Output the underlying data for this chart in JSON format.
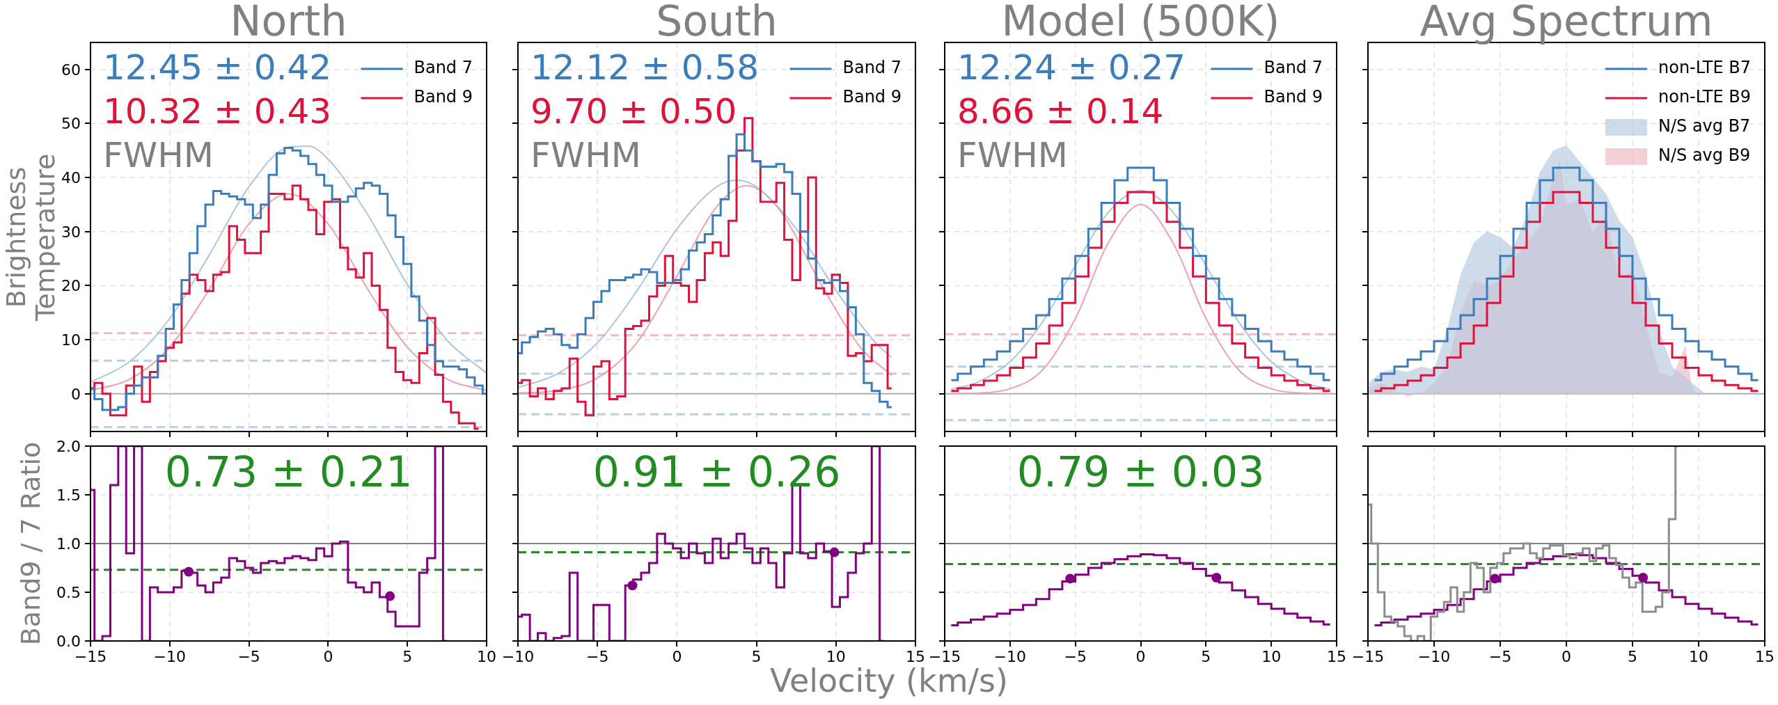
{
  "chart_data": [
    {
      "type": "step",
      "title": "North",
      "ylabel": "Brightness Temperature",
      "xlim": [
        -15,
        10
      ],
      "xticks": [
        -15,
        -10,
        -5,
        0,
        5,
        10
      ],
      "ylim": [
        -7,
        65
      ],
      "yticks": [
        0,
        10,
        20,
        30,
        40,
        50,
        60
      ],
      "tick_labels": "y",
      "grid": true,
      "legend": "top right",
      "annotations": [
        "12.45 ± 0.42",
        "10.32 ± 0.43",
        "FWHM"
      ],
      "ref_lines": [
        {
          "axis": "y",
          "value": 0,
          "color": "#b0b0b0"
        },
        {
          "axis": "y",
          "value": 11.2,
          "color": "#f4b8c4",
          "line_style": "dashed"
        },
        {
          "axis": "y",
          "value": 6.1,
          "color": "#b8cfe6",
          "line_style": "dashed"
        },
        {
          "axis": "y",
          "value": -6.2,
          "color": "#b8cfe6",
          "line_style": "dashed"
        }
      ],
      "series": [
        {
          "name": "Band 7",
          "color": "#3b7dba",
          "x": [
            -15,
            -14.5,
            -14,
            -13.5,
            -13,
            -12.5,
            -12,
            -11.5,
            -11,
            -10.5,
            -10,
            -9.5,
            -9,
            -8.5,
            -8,
            -7.5,
            -7,
            -6.5,
            -6,
            -5.5,
            -5,
            -4.5,
            -4,
            -3.5,
            -3,
            -2.5,
            -2,
            -1.5,
            -1,
            -0.5,
            0,
            0.5,
            1,
            1.5,
            2,
            2.5,
            3,
            3.5,
            4,
            4.5,
            5,
            5.5,
            6,
            6.5,
            7,
            7.5,
            8,
            8.5,
            9,
            9.5,
            10
          ],
          "values": [
            1,
            -1,
            -3,
            -3,
            -2.5,
            0,
            1.5,
            3,
            3,
            7,
            12,
            16.5,
            21,
            26,
            31,
            35,
            37.5,
            37,
            36.5,
            36,
            35,
            32.5,
            35,
            40.5,
            44.5,
            45.5,
            45,
            44,
            42.5,
            40.5,
            38.5,
            35.5,
            35.5,
            36.5,
            38,
            39,
            38.5,
            37,
            33,
            29,
            24,
            18,
            13.5,
            9,
            6,
            5,
            5,
            4.5,
            3,
            1.5,
            0
          ]
        },
        {
          "name": "Band 9",
          "color": "#dc143c",
          "x": [
            -15,
            -14.5,
            -14,
            -13.5,
            -13,
            -12.5,
            -12,
            -11.5,
            -11,
            -10.5,
            -10,
            -9.5,
            -9,
            -8.5,
            -8,
            -7.5,
            -7,
            -6.5,
            -6,
            -5.5,
            -5,
            -4.5,
            -4,
            -3.5,
            -3,
            -2.5,
            -2,
            -1.5,
            -1,
            -0.5,
            0,
            0.5,
            1,
            1.5,
            2,
            2.5,
            3,
            3.5,
            4,
            4.5,
            5,
            5.5,
            6,
            6.5,
            7,
            7.5,
            8,
            8.5,
            9,
            9.5
          ],
          "values": [
            1,
            2,
            0,
            -4,
            -4,
            1.5,
            5,
            -1.5,
            4,
            6,
            8.5,
            9.5,
            18.5,
            22,
            21,
            19,
            22,
            22.5,
            31,
            28.5,
            26,
            26,
            30,
            37,
            37,
            36,
            38.5,
            36,
            34,
            29.5,
            35.5,
            36,
            27,
            23,
            21.5,
            26,
            20,
            15.5,
            8.5,
            4,
            2.5,
            2,
            7.5,
            14,
            3.5,
            -1.5,
            -3.5,
            -5.5,
            -5.5,
            -6.5
          ]
        },
        {
          "type": "line",
          "color": "#a9c5df",
          "x": [
            -15,
            -12.5,
            -10,
            -7.5,
            -5,
            -2.5,
            -1.25,
            0,
            2.5,
            5,
            7.5,
            10
          ],
          "values": [
            2.1,
            6,
            13.9,
            25.7,
            38.3,
            45.6,
            45.8,
            43.4,
            33.1,
            20.2,
            9.9,
            3.8
          ]
        },
        {
          "type": "line",
          "color": "#eda1b0",
          "x": [
            -15,
            -12.5,
            -10,
            -7.5,
            -5,
            -2.5,
            0,
            2.5,
            5,
            7.5,
            10
          ],
          "values": [
            0.6,
            2.7,
            8.6,
            19.3,
            31.4,
            37,
            31.4,
            19.3,
            8.6,
            2.7,
            0.6
          ]
        }
      ]
    },
    {
      "type": "step",
      "title": "South",
      "xlim": [
        -10,
        15
      ],
      "xticks": [
        -10,
        -5,
        0,
        5,
        10,
        15
      ],
      "ylim": [
        -7,
        65
      ],
      "yticks": [
        0,
        10,
        20,
        30,
        40,
        50,
        60
      ],
      "tick_labels": false,
      "grid": true,
      "legend": "top right",
      "annotations": [
        "12.12 ± 0.58",
        "9.70 ± 0.50",
        "FWHM"
      ],
      "ref_lines": [
        {
          "axis": "y",
          "value": 0,
          "color": "#b0b0b0"
        },
        {
          "axis": "y",
          "value": 10.8,
          "color": "#f4b8c4",
          "line_style": "dashed"
        },
        {
          "axis": "y",
          "value": 3.7,
          "color": "#b8cfe6",
          "line_style": "dashed"
        },
        {
          "axis": "y",
          "value": -3.8,
          "color": "#b8cfe6",
          "line_style": "dashed"
        }
      ],
      "series": [
        {
          "name": "Band 7",
          "color": "#3b7dba",
          "x": [
            -10,
            -9.5,
            -9,
            -8.5,
            -8,
            -7.5,
            -7,
            -6.5,
            -6,
            -5.5,
            -5,
            -4.5,
            -4,
            -3.5,
            -3,
            -2.5,
            -2,
            -1.5,
            -1,
            -0.5,
            0,
            0.5,
            1,
            1.5,
            2,
            2.5,
            3,
            3.5,
            4,
            4.5,
            5,
            5.5,
            6,
            6.5,
            7,
            7.5,
            8,
            8.5,
            9,
            9.5,
            10,
            10.5,
            11,
            11.5,
            12,
            12.5,
            13,
            13.5
          ],
          "values": [
            7.5,
            9.5,
            10.5,
            11.5,
            12,
            11,
            9,
            8.5,
            11,
            14,
            17,
            19,
            21,
            21,
            21.5,
            22,
            23,
            22.5,
            20.5,
            20.5,
            21,
            23,
            26.5,
            28,
            29.5,
            33,
            36,
            44,
            48,
            45,
            43,
            42,
            42,
            42.5,
            41,
            37,
            30,
            25,
            21,
            20.5,
            21,
            19,
            16,
            11,
            2,
            0.5,
            -1.5,
            -2.5
          ]
        },
        {
          "name": "Band 9",
          "color": "#dc143c",
          "x": [
            -10,
            -9.5,
            -9,
            -8.5,
            -8,
            -7.5,
            -7,
            -6.5,
            -6,
            -5.5,
            -5,
            -4.5,
            -4,
            -3.5,
            -3,
            -2.5,
            -2,
            -1.5,
            -1,
            -0.5,
            0,
            0.5,
            1,
            1.5,
            2,
            2.5,
            3,
            3.5,
            4,
            4.5,
            5,
            5.5,
            6,
            6.5,
            7,
            7.5,
            8,
            8.5,
            9,
            9.5,
            10,
            10.5,
            11,
            11.5,
            12,
            12.5,
            13,
            13.5
          ],
          "values": [
            2,
            2.5,
            -0.5,
            1,
            -1,
            0.5,
            1,
            6.5,
            -1.5,
            -4,
            5,
            6,
            -1,
            -0.5,
            12,
            12.5,
            13.5,
            18,
            20,
            25.5,
            20.5,
            20,
            17,
            21,
            26,
            28,
            25.5,
            32,
            45,
            51,
            43,
            35.5,
            35.5,
            39,
            28.5,
            21,
            30,
            40,
            19.5,
            18.5,
            22,
            20.5,
            7,
            7.5,
            6,
            9,
            9,
            1
          ]
        },
        {
          "type": "line",
          "color": "#a9c5df",
          "x": [
            -10,
            -7.5,
            -5,
            -2.5,
            0,
            2.5,
            3.75,
            5,
            7.5,
            10,
            12.5,
            13.5
          ],
          "values": [
            1.1,
            3.7,
            9.4,
            19.1,
            30.5,
            38.3,
            39.5,
            38.3,
            30.5,
            19.1,
            9.4,
            6.7
          ]
        },
        {
          "type": "line",
          "color": "#eda1b0",
          "x": [
            -10,
            -7.5,
            -5,
            -2.5,
            0,
            2.5,
            4.4,
            6.5,
            9,
            11.5,
            13.5
          ],
          "values": [
            0.1,
            0.6,
            2.9,
            9.5,
            21.8,
            34.6,
            38.5,
            33.8,
            20.6,
            8.7,
            3.4
          ]
        }
      ]
    },
    {
      "type": "step",
      "title": "Model (500K)",
      "xlim": [
        -15,
        15
      ],
      "xticks": [
        -15,
        -10,
        -5,
        0,
        5,
        10,
        15
      ],
      "ylim": [
        -7,
        65
      ],
      "yticks": [
        0,
        10,
        20,
        30,
        40,
        50,
        60
      ],
      "tick_labels": false,
      "grid": true,
      "legend": "top right",
      "annotations": [
        "12.24 ± 0.27",
        "8.66 ± 0.14",
        "FWHM"
      ],
      "ref_lines": [
        {
          "axis": "y",
          "value": 0,
          "color": "#b0b0b0"
        },
        {
          "axis": "y",
          "value": 11,
          "color": "#f4b8c4",
          "line_style": "dashed"
        },
        {
          "axis": "y",
          "value": 5,
          "color": "#b8cfe6",
          "line_style": "dashed"
        },
        {
          "axis": "y",
          "value": -4.9,
          "color": "#b8cfe6",
          "line_style": "dashed"
        }
      ],
      "series": [
        {
          "name": "Band 7",
          "color": "#3b7dba",
          "x": [
            -14.5,
            -13.5,
            -12.5,
            -11.5,
            -10.5,
            -9.5,
            -8.5,
            -7.5,
            -6.5,
            -5.5,
            -4.5,
            -3.5,
            -2.5,
            -1.5,
            -0.5,
            0.5,
            1.5,
            2.5,
            3.5,
            4.5,
            5.5,
            6.5,
            7.5,
            8.5,
            9.5,
            10.5,
            11.5,
            12.5,
            13.5,
            14.5
          ],
          "values": [
            2.5,
            3.7,
            5,
            6.3,
            7.8,
            9.7,
            12,
            14.5,
            17.5,
            21.3,
            25.5,
            30.5,
            35.3,
            39.5,
            41.8,
            41.8,
            39.5,
            35.3,
            30.5,
            25.5,
            21.3,
            17.5,
            14.5,
            12,
            9.7,
            7.8,
            6.3,
            5,
            3.7,
            2.5
          ]
        },
        {
          "name": "Band 9",
          "color": "#dc143c",
          "x": [
            -14.5,
            -13.5,
            -12.5,
            -11.5,
            -10.5,
            -9.5,
            -8.5,
            -7.5,
            -6.5,
            -5.5,
            -4.5,
            -3.5,
            -2.5,
            -1.5,
            -0.5,
            0.5,
            1.5,
            2.5,
            3.5,
            4.5,
            5.5,
            6.5,
            7.5,
            8.5,
            9.5,
            10.5,
            11.5,
            12.5,
            13.5,
            14.5
          ],
          "values": [
            0.5,
            1,
            1.6,
            2.4,
            3.4,
            4.8,
            6.7,
            9.3,
            12.6,
            16.8,
            21.7,
            27,
            31.8,
            35.3,
            37.3,
            37.3,
            35.3,
            31.8,
            27,
            21.7,
            16.8,
            12.6,
            9.3,
            6.7,
            4.8,
            3.4,
            2.4,
            1.6,
            1,
            0.5
          ]
        },
        {
          "type": "line",
          "color": "#a9c5df",
          "x": [
            -14.5,
            -12.5,
            -10,
            -7.5,
            -5,
            -2.5,
            0,
            2.5,
            5,
            7.5,
            10,
            12.5,
            14.5
          ],
          "values": [
            0.8,
            2.1,
            5.9,
            13.3,
            23.7,
            33.5,
            37.6,
            33.5,
            23.7,
            13.3,
            5.9,
            2.1,
            0.8
          ]
        },
        {
          "type": "line",
          "color": "#eda1b0",
          "x": [
            -14.5,
            -12.5,
            -10,
            -7.5,
            -5,
            -2.5,
            0,
            2.5,
            5,
            7.5,
            10,
            12.5,
            14.5
          ],
          "values": [
            0,
            0.1,
            0.9,
            4.4,
            13.9,
            27.8,
            35,
            27.8,
            13.9,
            4.4,
            0.9,
            0.1,
            0
          ]
        }
      ]
    },
    {
      "type": "step",
      "title": "Avg Spectrum",
      "xlim": [
        -15,
        15
      ],
      "xticks": [
        -15,
        -10,
        -5,
        0,
        5,
        10,
        15
      ],
      "ylim": [
        -7,
        65
      ],
      "yticks": [
        0,
        10,
        20,
        30,
        40,
        50,
        60
      ],
      "tick_labels": false,
      "grid": true,
      "legend": "top right",
      "ref_lines": [
        {
          "axis": "y",
          "value": 0,
          "color": "#b0b0b0"
        }
      ],
      "series": [
        {
          "name": "non-LTE B7",
          "color": "#3b7dba",
          "x": [
            -14.5,
            -13.5,
            -12.5,
            -11.5,
            -10.5,
            -9.5,
            -8.5,
            -7.5,
            -6.5,
            -5.5,
            -4.5,
            -3.5,
            -2.5,
            -1.5,
            -0.5,
            0.5,
            1.5,
            2.5,
            3.5,
            4.5,
            5.5,
            6.5,
            7.5,
            8.5,
            9.5,
            10.5,
            11.5,
            12.5,
            13.5,
            14.5
          ],
          "values": [
            2.5,
            3.7,
            5,
            6.3,
            7.8,
            9.7,
            12,
            14.5,
            17.5,
            21.3,
            25.5,
            30.5,
            35.3,
            39.5,
            41.8,
            41.8,
            39.5,
            35.3,
            30.5,
            25.5,
            21.3,
            17.5,
            14.5,
            12,
            9.7,
            7.8,
            6.3,
            5,
            3.7,
            2.5
          ]
        },
        {
          "name": "non-LTE B9",
          "color": "#dc143c",
          "x": [
            -14.5,
            -13.5,
            -12.5,
            -11.5,
            -10.5,
            -9.5,
            -8.5,
            -7.5,
            -6.5,
            -5.5,
            -4.5,
            -3.5,
            -2.5,
            -1.5,
            -0.5,
            0.5,
            1.5,
            2.5,
            3.5,
            4.5,
            5.5,
            6.5,
            7.5,
            8.5,
            9.5,
            10.5,
            11.5,
            12.5,
            13.5,
            14.5
          ],
          "values": [
            0.5,
            1,
            1.6,
            2.4,
            3.4,
            4.8,
            6.7,
            9.3,
            12.6,
            16.8,
            21.7,
            27,
            31.8,
            35.3,
            37.3,
            37.3,
            35.3,
            31.8,
            27,
            21.7,
            16.8,
            12.6,
            9.3,
            6.7,
            4.8,
            3.4,
            2.4,
            1.6,
            1,
            0.5
          ]
        },
        {
          "name": "N/S avg B7",
          "type": "area",
          "color": "#b7cbe0",
          "x": [
            -15,
            -14,
            -13,
            -12,
            -11,
            -10,
            -9,
            -8,
            -7,
            -6,
            -5,
            -4,
            -3,
            -2,
            -1,
            0,
            1,
            2,
            3,
            4,
            5,
            6,
            7,
            8,
            9,
            10,
            10.5
          ],
          "values": [
            2,
            4,
            4.5,
            4,
            5,
            4.5,
            12,
            22,
            28,
            30,
            29,
            27,
            33,
            41,
            45,
            46,
            43,
            40,
            37,
            32,
            29,
            22,
            12,
            5,
            3,
            1,
            0
          ]
        },
        {
          "name": "N/S avg B9",
          "type": "area",
          "color": "#f0b9c3",
          "x": [
            -15,
            -14,
            -13,
            -12,
            -11,
            -10,
            -9,
            -8,
            -7,
            -6,
            -5,
            -4,
            -3,
            -2,
            -1,
            -0.5,
            0,
            1,
            2,
            3,
            4,
            5,
            6,
            7,
            8,
            9,
            9.5,
            10
          ],
          "values": [
            1,
            2,
            0.5,
            -0.5,
            0,
            2,
            5,
            15,
            21,
            20,
            21,
            25,
            28,
            31,
            40,
            43.5,
            35,
            36,
            30,
            33,
            21,
            23,
            13,
            4,
            3,
            9,
            1,
            0
          ]
        }
      ]
    },
    {
      "type": "step",
      "ylabel": "Band9 / 7 Ratio",
      "xlim": [
        -15,
        10
      ],
      "xticks": [
        {
          "value": -15,
          "label": "−15"
        },
        {
          "value": -10,
          "label": "−10"
        },
        {
          "value": -5,
          "label": "−5"
        },
        0,
        5,
        10
      ],
      "ylim": [
        0,
        2
      ],
      "yticks": [
        {
          "value": 0,
          "label": "0.0"
        },
        {
          "value": 0.5,
          "label": "0.5"
        },
        {
          "value": 1,
          "label": "1.0"
        },
        {
          "value": 1.5,
          "label": "1.5"
        },
        {
          "value": 2,
          "label": "2.0"
        }
      ],
      "grid": true,
      "annotations": [
        "0.73 ± 0.21"
      ],
      "ref_lines": [
        {
          "axis": "y",
          "value": 1,
          "color": "#808080"
        },
        {
          "axis": "y",
          "value": 0.73,
          "color": "#228b22",
          "line_style": "dashed"
        }
      ],
      "series": [
        {
          "color": "#800080",
          "x": [
            -15,
            -14.5,
            -14,
            -13.5,
            -13,
            -12.5,
            -12,
            -11.5,
            -11,
            -10.5,
            -10,
            -9.5,
            -9,
            -8.5,
            -8,
            -7.5,
            -7,
            -6.5,
            -6,
            -5.5,
            -5,
            -4.5,
            -4,
            -3.5,
            -3,
            -2.5,
            -2,
            -1.5,
            -1,
            -0.5,
            0,
            0.5,
            1,
            1.5,
            2,
            2.5,
            3,
            3.5,
            4,
            4.5,
            5,
            5.5,
            6,
            6.5,
            7,
            7.5
          ],
          "values": [
            1.55,
            0,
            0.05,
            1.6,
            2,
            0.9,
            2,
            0,
            0.55,
            0.5,
            0.5,
            0.55,
            0.72,
            0.7,
            0.57,
            0.5,
            0.6,
            0.65,
            0.85,
            0.82,
            0.75,
            0.7,
            0.8,
            0.82,
            0.8,
            0.85,
            0.87,
            0.85,
            0.83,
            0.95,
            0.87,
            1,
            1.02,
            0.6,
            0.55,
            0.5,
            0.6,
            0.45,
            0.3,
            0.15,
            0.15,
            0.15,
            0.7,
            0.85,
            2,
            0
          ]
        },
        {
          "type": "scatter",
          "color": "#800080",
          "x": [
            -8.8,
            3.9
          ],
          "values": [
            0.71,
            0.46
          ]
        }
      ]
    },
    {
      "type": "step",
      "xlabel": "Velocity (km/s)",
      "xlim": [
        -10,
        15
      ],
      "xticks": [
        {
          "value": -10,
          "label": "−10"
        },
        {
          "value": -5,
          "label": "−5"
        },
        0,
        5,
        10,
        15
      ],
      "ylim": [
        0,
        2
      ],
      "yticks": [
        0,
        0.5,
        1,
        1.5,
        2
      ],
      "tick_labels": "x",
      "grid": true,
      "annotations": [
        "0.91 ± 0.26"
      ],
      "ref_lines": [
        {
          "axis": "y",
          "value": 1,
          "color": "#808080"
        },
        {
          "axis": "y",
          "value": 0.91,
          "color": "#228b22",
          "line_style": "dashed"
        }
      ],
      "series": [
        {
          "color": "#800080",
          "x": [
            -10,
            -9.5,
            -9,
            -8.5,
            -8,
            -7.5,
            -7,
            -6.5,
            -6,
            -5.5,
            -5,
            -4.5,
            -4,
            -3.5,
            -3,
            -2.5,
            -2,
            -1.5,
            -1,
            -0.5,
            0,
            0.5,
            1,
            1.5,
            2,
            2.5,
            3,
            3.5,
            4,
            4.5,
            5,
            5.5,
            6,
            6.5,
            7,
            7.5,
            8,
            8.5,
            9,
            9.5,
            10,
            10.5,
            11,
            11.5,
            12,
            12.5,
            13
          ],
          "values": [
            0.25,
            0.27,
            0,
            0.08,
            0,
            0.03,
            0.05,
            0.7,
            0,
            0,
            0.37,
            0.37,
            0,
            0,
            0.57,
            0.63,
            0.7,
            0.8,
            1.1,
            1,
            0.95,
            0.85,
            1,
            0.9,
            0.8,
            1.05,
            0.85,
            1,
            1.1,
            0.95,
            0.8,
            0.95,
            0.8,
            0.55,
            0.9,
            1.6,
            0.9,
            0.85,
            1,
            0.92,
            0.35,
            0.45,
            0.7,
            0.9,
            1,
            2,
            0
          ]
        },
        {
          "type": "scatter",
          "color": "#800080",
          "x": [
            -2.8,
            9.9
          ],
          "values": [
            0.57,
            0.91
          ]
        }
      ]
    },
    {
      "type": "step",
      "xlim": [
        -15,
        15
      ],
      "xticks": [
        {
          "value": -15,
          "label": "−15"
        },
        {
          "value": -10,
          "label": "−10"
        },
        {
          "value": -5,
          "label": "−5"
        },
        0,
        5,
        10,
        15
      ],
      "ylim": [
        0,
        2
      ],
      "yticks": [
        0,
        0.5,
        1,
        1.5,
        2
      ],
      "tick_labels": "x",
      "grid": true,
      "annotations": [
        "0.79 ± 0.03"
      ],
      "ref_lines": [
        {
          "axis": "y",
          "value": 1,
          "color": "#808080"
        },
        {
          "axis": "y",
          "value": 0.79,
          "color": "#228b22",
          "line_style": "dashed"
        }
      ],
      "series": [
        {
          "color": "#800080",
          "x": [
            -14.5,
            -13.5,
            -12.5,
            -11.5,
            -10.5,
            -9.5,
            -8.5,
            -7.5,
            -6.5,
            -5.5,
            -4.5,
            -3.5,
            -2.5,
            -1.5,
            -0.5,
            0.5,
            1.5,
            2.5,
            3.5,
            4.5,
            5.5,
            6.5,
            7.5,
            8.5,
            9.5,
            10.5,
            11.5,
            12.5,
            13.5,
            14.5
          ],
          "values": [
            0.16,
            0.19,
            0.22,
            0.25,
            0.28,
            0.32,
            0.37,
            0.43,
            0.53,
            0.61,
            0.68,
            0.75,
            0.8,
            0.84,
            0.87,
            0.89,
            0.88,
            0.85,
            0.8,
            0.74,
            0.67,
            0.6,
            0.52,
            0.45,
            0.38,
            0.33,
            0.28,
            0.24,
            0.2,
            0.17
          ]
        },
        {
          "type": "scatter",
          "color": "#800080",
          "x": [
            -5.4,
            5.8
          ],
          "values": [
            0.64,
            0.65
          ]
        }
      ]
    },
    {
      "type": "step",
      "xlim": [
        -15,
        15
      ],
      "xticks": [
        {
          "value": -15,
          "label": "−15"
        },
        {
          "value": -10,
          "label": "−10"
        },
        {
          "value": -5,
          "label": "−5"
        },
        0,
        5,
        10,
        15
      ],
      "ylim": [
        0,
        2
      ],
      "yticks": [
        0,
        0.5,
        1,
        1.5,
        2
      ],
      "tick_labels": "x",
      "grid": true,
      "ref_lines": [
        {
          "axis": "y",
          "value": 1,
          "color": "#808080"
        },
        {
          "axis": "y",
          "value": 0.79,
          "color": "#228b22",
          "line_style": "dashed"
        }
      ],
      "series": [
        {
          "color": "#8c8c8c",
          "x": [
            -15,
            -14.5,
            -14,
            -13.5,
            -13,
            -12.5,
            -12,
            -11.5,
            -11,
            -10.5,
            -10,
            -9.5,
            -9,
            -8.5,
            -8,
            -7.5,
            -7,
            -6.5,
            -6,
            -5.5,
            -5,
            -4.5,
            -4,
            -3.5,
            -3,
            -2.5,
            -2,
            -1.5,
            -1,
            -0.5,
            0,
            0.5,
            1,
            1.5,
            2,
            2.5,
            3,
            3.5,
            4,
            4.5,
            5,
            5.5,
            6,
            6.5,
            7,
            7.5,
            8,
            8.5
          ],
          "values": [
            1.4,
            1,
            0.5,
            0.25,
            0.2,
            0.15,
            0.05,
            0,
            0.05,
            0,
            0.25,
            0.3,
            0.4,
            0.55,
            0.3,
            0.5,
            0.8,
            0.75,
            0.5,
            0.75,
            0.8,
            0.9,
            0.95,
            0.95,
            1,
            0.9,
            0.85,
            0.95,
            0.98,
            0.98,
            0.88,
            0.85,
            0.9,
            0.95,
            0.82,
            0.95,
            0.98,
            0.85,
            0.78,
            0.65,
            0.55,
            0.6,
            0.3,
            0.3,
            0.35,
            0.5,
            1.25,
            2
          ]
        },
        {
          "color": "#800080",
          "x": [
            -14.5,
            -13.5,
            -12.5,
            -11.5,
            -10.5,
            -9.5,
            -8.5,
            -7.5,
            -6.5,
            -5.5,
            -4.5,
            -3.5,
            -2.5,
            -1.5,
            -0.5,
            0.5,
            1.5,
            2.5,
            3.5,
            4.5,
            5.5,
            6.5,
            7.5,
            8.5,
            9.5,
            10.5,
            11.5,
            12.5,
            13.5,
            14.5
          ],
          "values": [
            0.16,
            0.19,
            0.22,
            0.25,
            0.28,
            0.32,
            0.37,
            0.43,
            0.53,
            0.61,
            0.68,
            0.75,
            0.8,
            0.84,
            0.87,
            0.89,
            0.88,
            0.85,
            0.8,
            0.74,
            0.67,
            0.6,
            0.52,
            0.45,
            0.38,
            0.33,
            0.28,
            0.24,
            0.2,
            0.17
          ]
        },
        {
          "type": "scatter",
          "color": "#800080",
          "x": [
            -5.4,
            5.8
          ],
          "values": [
            0.64,
            0.65
          ]
        }
      ]
    }
  ]
}
